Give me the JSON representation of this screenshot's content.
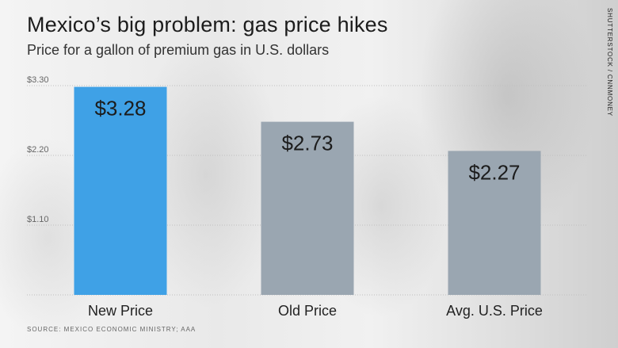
{
  "header": {
    "title": "Mexico’s big problem: gas price hikes",
    "subtitle": "Price for a gallon of premium gas in U.S. dollars"
  },
  "credit": "SHUTTERSTOCK / CNNMONEY",
  "source": "SOURCE: MEXICO ECONOMIC MINISTRY; AAA",
  "colors": {
    "highlight": "#3fa1e6",
    "default": "#9aa6b1",
    "grid": "#bfbfbf"
  },
  "chart_data": {
    "type": "bar",
    "title": "Mexico’s big problem: gas price hikes",
    "subtitle": "Price for a gallon of premium gas in U.S. dollars",
    "categories": [
      "New Price",
      "Old Price",
      "Avg. U.S. Price"
    ],
    "values": [
      3.28,
      2.73,
      2.27
    ],
    "value_labels": [
      "$3.28",
      "$2.73",
      "$2.27"
    ],
    "highlight_index": 0,
    "ylim": [
      0,
      3.3
    ],
    "yticks": [
      1.1,
      2.2,
      3.3
    ],
    "ytick_labels": [
      "$1.10",
      "$2.20",
      "$3.30"
    ],
    "grid": true,
    "xlabel": "",
    "ylabel": ""
  }
}
